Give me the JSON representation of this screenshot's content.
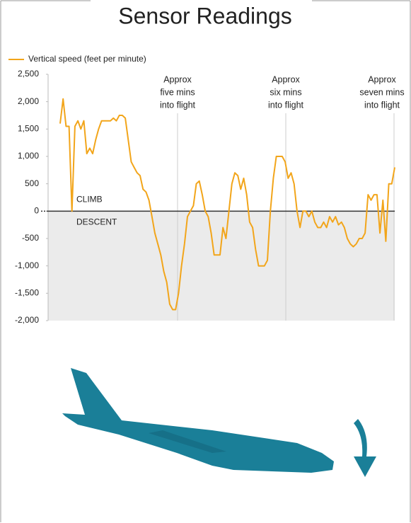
{
  "chart_data": {
    "type": "line",
    "title": "Sensor Readings",
    "series": [
      {
        "name": "Vertical speed (feet per minute)",
        "color": "#f2a51a",
        "values": [
          1600,
          2050,
          1550,
          1550,
          0,
          1550,
          1650,
          1500,
          1650,
          1050,
          1150,
          1050,
          1300,
          1500,
          1650,
          1650,
          1650,
          1650,
          1700,
          1650,
          1750,
          1750,
          1700,
          1300,
          900,
          800,
          700,
          650,
          400,
          350,
          200,
          -100,
          -400,
          -600,
          -800,
          -1100,
          -1300,
          -1700,
          -1800,
          -1800,
          -1500,
          -1000,
          -600,
          -100,
          0,
          100,
          500,
          550,
          300,
          0,
          -100,
          -400,
          -800,
          -800,
          -800,
          -300,
          -500,
          0,
          500,
          700,
          650,
          400,
          600,
          300,
          -200,
          -300,
          -700,
          -1000,
          -1000,
          -1000,
          -900,
          0,
          600,
          1000,
          1000,
          1000,
          900,
          600,
          700,
          500,
          0,
          -300,
          0,
          0,
          -100,
          0,
          -200,
          -300,
          -300,
          -200,
          -300,
          -100,
          -200,
          -100,
          -250,
          -200,
          -300,
          -500,
          -600,
          -650,
          -600,
          -500,
          -500,
          -400,
          300,
          200,
          300,
          300,
          -400,
          200,
          -550,
          500,
          500,
          800
        ]
      }
    ],
    "ylim": [
      -2000,
      2500
    ],
    "yticks": [
      {
        "value": -2000,
        "label": "-2,000"
      },
      {
        "value": -1500,
        "label": "-1,500"
      },
      {
        "value": -1000,
        "label": "-1,000"
      },
      -500,
      0,
      500,
      {
        "value": 1000,
        "label": "1,000"
      },
      {
        "value": 1500,
        "label": "1,500"
      },
      {
        "value": 2000,
        "label": "2,000"
      },
      {
        "value": 2500,
        "label": "2,500"
      }
    ],
    "zone_labels": [
      "CLIMB",
      "DESCENT"
    ],
    "annotations": [
      [
        "Approx",
        "five mins",
        "into flight"
      ],
      [
        "Approx",
        "six mins",
        "into flight"
      ],
      [
        "Approx",
        "seven mins",
        "into flight"
      ]
    ]
  }
}
